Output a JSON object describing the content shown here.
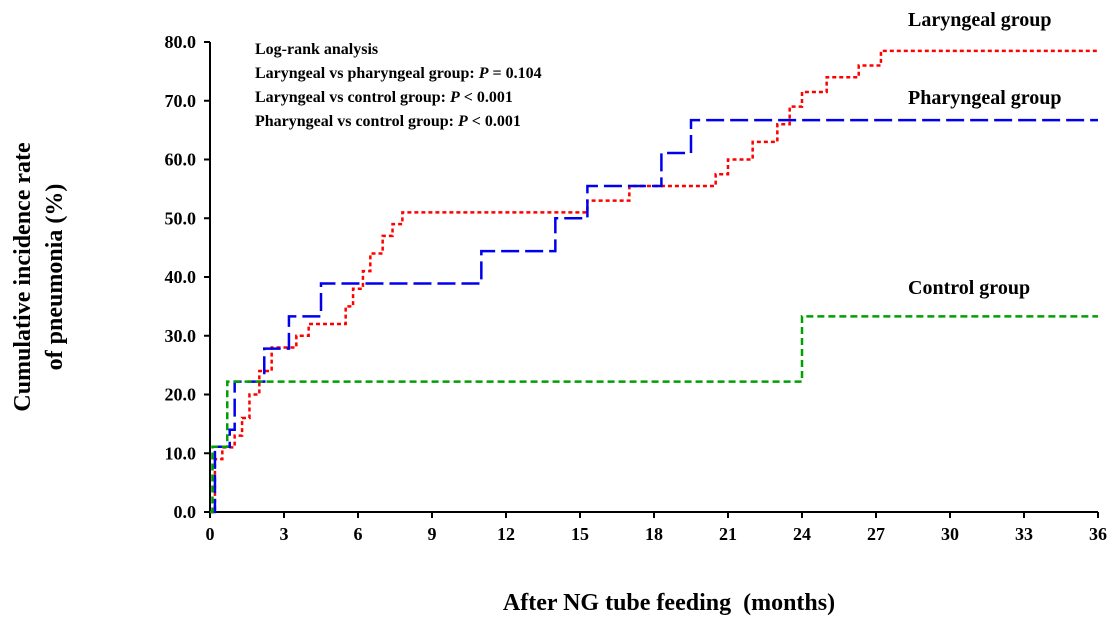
{
  "chart_data": {
    "type": "step",
    "y_label": [
      "Cumulative incidence rate",
      "of pneumonia (%)"
    ],
    "x_label": "After NG tube feeding  (months)",
    "annotation_title": "Log-rank analysis",
    "annotations": [
      [
        "Laryngeal vs pharyngeal group: ",
        "P",
        " = 0.104"
      ],
      [
        "Laryngeal vs control group: ",
        "P",
        " < 0.001"
      ],
      [
        "Pharyngeal vs control group: ",
        "P",
        " < 0.001"
      ]
    ],
    "xlim": [
      0,
      36
    ],
    "xticks": [
      0,
      3,
      6,
      9,
      12,
      15,
      18,
      21,
      24,
      27,
      30,
      33,
      36
    ],
    "ylim": [
      0,
      80
    ],
    "yticks": [
      {
        "value": 0,
        "label": "0.0"
      },
      {
        "value": 10,
        "label": "10.0"
      },
      {
        "value": 20,
        "label": "20.0"
      },
      {
        "value": 30,
        "label": "30.0"
      },
      {
        "value": 40,
        "label": "40.0"
      },
      {
        "value": 50,
        "label": "50.0"
      },
      {
        "value": 60,
        "label": "60.0"
      },
      {
        "value": 70,
        "label": "70.0"
      },
      {
        "value": 80,
        "label": "80.0"
      }
    ],
    "grid": false,
    "series": [
      {
        "name": "Laryngeal group",
        "color": "#ff0000",
        "dash": "4 3",
        "x": [
          0,
          0.2,
          0.5,
          1,
          1.3,
          1.6,
          2,
          2.5,
          3.5,
          4,
          5.5,
          5.8,
          6.2,
          6.5,
          7,
          7.4,
          7.8,
          15.3,
          17,
          20.5,
          21,
          22,
          23,
          23.5,
          24,
          25,
          26.3,
          27.2,
          36
        ],
        "values": [
          0,
          9,
          11,
          13,
          16,
          20,
          24,
          28,
          30,
          32,
          35,
          38,
          41,
          44,
          47,
          49,
          51,
          53,
          55.5,
          57.5,
          60,
          63,
          66,
          69,
          71.5,
          74,
          76,
          78.5,
          78.5
        ]
      },
      {
        "name": "Pharyngeal group",
        "color": "#0000ee",
        "dash": "18 6",
        "x": [
          0,
          0.2,
          0.8,
          1,
          2.2,
          3.2,
          4.5,
          11,
          14,
          15.3,
          18.3,
          19.5,
          36
        ],
        "values": [
          0,
          11.1,
          14,
          22.2,
          27.8,
          33.3,
          38.9,
          44.4,
          50,
          55.5,
          61.1,
          66.7,
          66.7
        ]
      },
      {
        "name": "Control group",
        "color": "#00a000",
        "dash": "7 4",
        "x": [
          0,
          0.1,
          0.7,
          24,
          36
        ],
        "values": [
          0,
          11.1,
          22.2,
          33.3,
          33.3
        ]
      }
    ]
  }
}
